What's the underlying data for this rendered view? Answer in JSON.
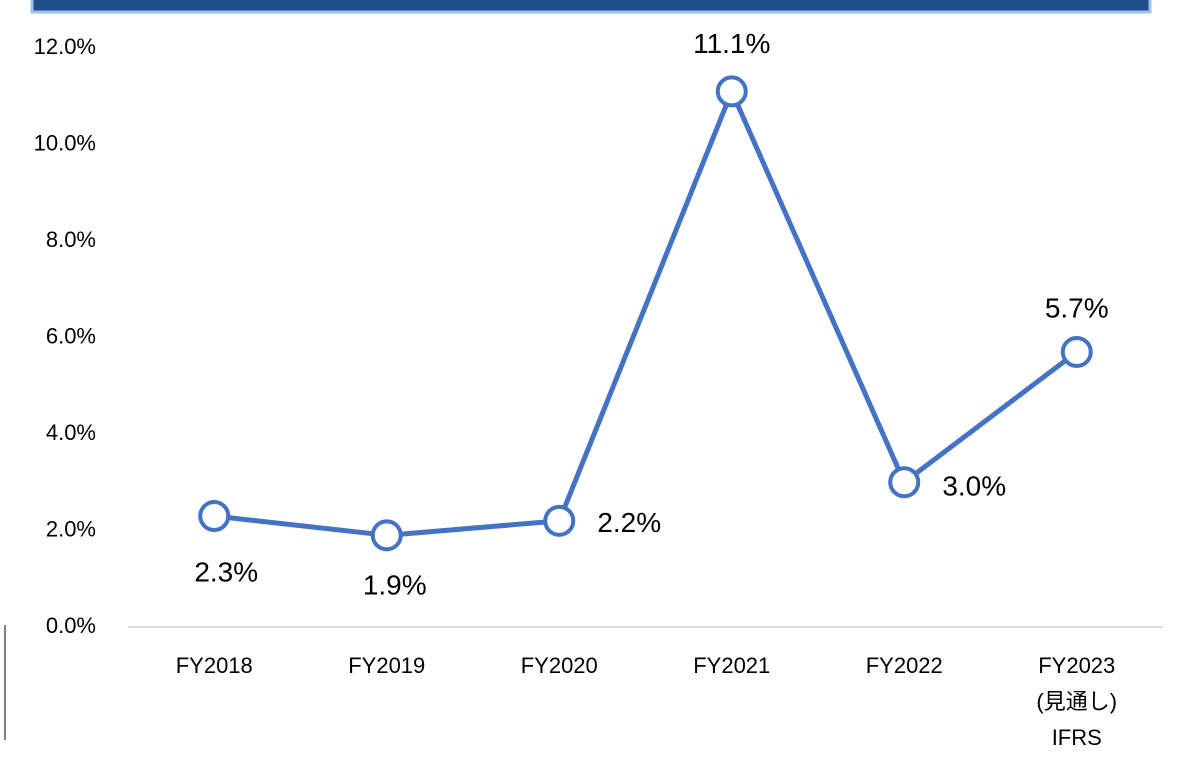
{
  "chart_data": {
    "type": "line",
    "categories": [
      "FY2018",
      "FY2019",
      "FY2020",
      "FY2021",
      "FY2022",
      "FY2023\n(見通し)\nIFRS"
    ],
    "values": [
      2.3,
      1.9,
      2.2,
      11.1,
      3.0,
      5.7
    ],
    "value_labels": [
      "2.3%",
      "1.9%",
      "2.2%",
      "11.1%",
      "3.0%",
      "5.7%"
    ],
    "color": "#4472c4",
    "ylim": [
      0,
      12
    ],
    "yticks": [
      {
        "value": 0,
        "label": "0.0%"
      },
      {
        "value": 2,
        "label": "2.0%"
      },
      {
        "value": 4,
        "label": "4.0%"
      },
      {
        "value": 6,
        "label": "6.0%"
      },
      {
        "value": 8,
        "label": "8.0%"
      },
      {
        "value": 10,
        "label": "10.0%"
      },
      {
        "value": 12,
        "label": "12.0%"
      }
    ],
    "grid": false
  }
}
